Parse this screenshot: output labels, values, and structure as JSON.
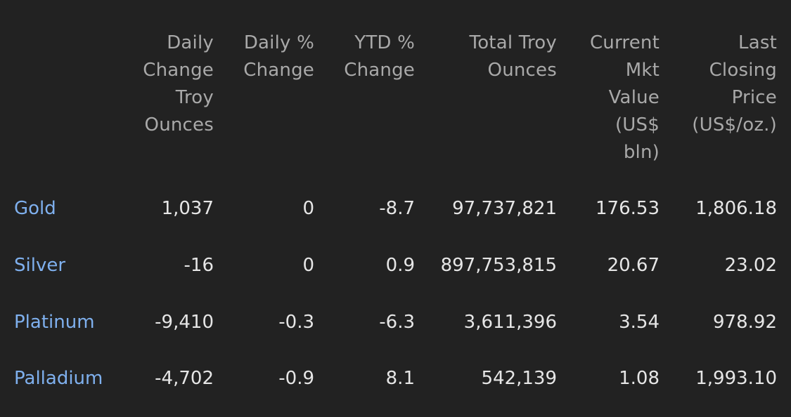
{
  "headers": [
    {
      "lines": [
        "Daily",
        "Change",
        "Troy",
        "Ounces"
      ]
    },
    {
      "lines": [
        "Daily %",
        "Change"
      ]
    },
    {
      "lines": [
        "YTD %",
        "Change"
      ]
    },
    {
      "lines": [
        "Total Troy",
        "Ounces"
      ]
    },
    {
      "lines": [
        "Current",
        "Mkt",
        "Value",
        "(US$",
        "bln)"
      ]
    },
    {
      "lines": [
        "Last",
        "Closing",
        "Price",
        "(US$/oz.)"
      ]
    }
  ],
  "rows": [
    {
      "name": "Gold",
      "values": [
        "1,037",
        "0",
        "-8.7",
        "97,737,821",
        "176.53",
        "1,806.18"
      ]
    },
    {
      "name": "Silver",
      "values": [
        "-16",
        "0",
        "0.9",
        "897,753,815",
        "20.67",
        "23.02"
      ]
    },
    {
      "name": "Platinum",
      "values": [
        "-9,410",
        "-0.3",
        "-6.3",
        "3,611,396",
        "3.54",
        "978.92"
      ]
    },
    {
      "name": "Palladium",
      "values": [
        "-4,702",
        "-0.9",
        "8.1",
        "542,139",
        "1.08",
        "1,993.10"
      ]
    }
  ],
  "colors": {
    "background": "#222222",
    "header_text": "#a9a9a9",
    "link": "#7fb0ee",
    "value_text": "#e6e6e6"
  }
}
